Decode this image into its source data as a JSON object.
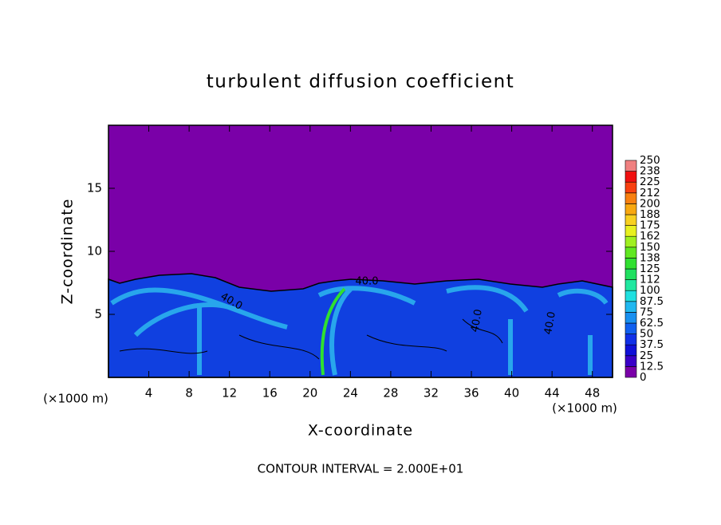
{
  "chart_data": {
    "type": "contour",
    "title": "turbulent diffusion coefficient",
    "x_label": "X-coordinate",
    "y_label": "Z-coordinate",
    "x_unit_left": "(×1000 m)",
    "x_unit_right": "(×1000 m)",
    "footnote": "CONTOUR INTERVAL = 2.000E+01",
    "xlim": [
      0,
      50
    ],
    "xticks": [
      4,
      8,
      12,
      16,
      20,
      24,
      28,
      32,
      36,
      40,
      44,
      48
    ],
    "ylim": [
      0,
      20
    ],
    "yticks": [
      5,
      10,
      15
    ],
    "contour_labels": [
      "40.0",
      "40.0",
      "40.0",
      "40.0"
    ],
    "colorbar": {
      "levels": [
        0,
        12.5,
        25,
        37.5,
        50,
        62.5,
        75,
        87.5,
        100,
        112,
        125,
        138,
        150,
        162,
        175,
        188,
        200,
        212,
        225,
        238,
        250
      ],
      "colors": [
        "#7a00a8",
        "#3a00c8",
        "#1010d8",
        "#1030e8",
        "#1060f0",
        "#1890f0",
        "#20b8f0",
        "#20e0e0",
        "#20e8a0",
        "#20e060",
        "#30e030",
        "#60e820",
        "#a0f020",
        "#e8f020",
        "#f8d020",
        "#f8a810",
        "#f88010",
        "#f84010",
        "#f01010",
        "#f08080"
      ]
    }
  }
}
